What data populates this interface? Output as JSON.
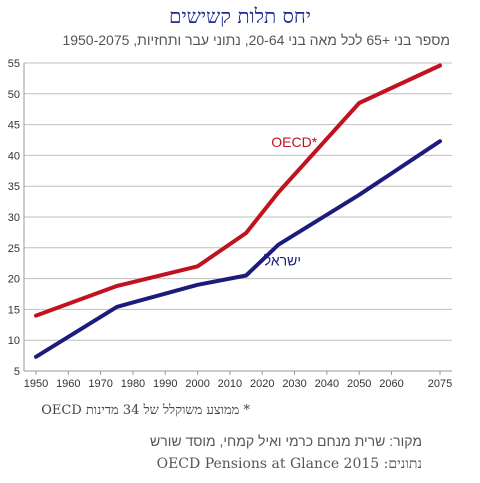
{
  "header": {
    "title": "יחס תלות קשישים",
    "subtitle": "מספר בני +65 לכל מאה בני 20-64, נתוני עבר ותחזיות, 1950-2075"
  },
  "footer": {
    "footnote": "* ממוצע משוקלל של 34 מדינות OECD",
    "source": "מקור: שרית מנחם כרמי ואיל קמחי, מוסד שורש",
    "data_source": "נתונים: OECD Pensions at Glance 2015"
  },
  "colors": {
    "oecd": "#c0131f",
    "israel": "#1c1c7c",
    "axis": "#999999",
    "grid": "#bfbfbf"
  },
  "chart_data": {
    "type": "line",
    "x_ticks": [
      1950,
      1960,
      1970,
      1980,
      1990,
      2000,
      2010,
      2020,
      2030,
      2040,
      2050,
      2060,
      2075
    ],
    "y_ticks": [
      5,
      10,
      15,
      20,
      25,
      30,
      35,
      40,
      45,
      50,
      55
    ],
    "ylim": [
      5,
      55
    ],
    "grid": "horizontal",
    "series": [
      {
        "name": "OECD*",
        "color": "#c0131f",
        "points": [
          [
            1950,
            14.0
          ],
          [
            1975,
            18.8
          ],
          [
            2000,
            22.0
          ],
          [
            2015,
            27.4
          ],
          [
            2025,
            34.0
          ],
          [
            2050,
            48.5
          ],
          [
            2075,
            54.6
          ]
        ]
      },
      {
        "name": "ישראל",
        "color": "#1c1c7c",
        "points": [
          [
            1950,
            7.3
          ],
          [
            1975,
            15.4
          ],
          [
            2000,
            19.0
          ],
          [
            2015,
            20.5
          ],
          [
            2025,
            25.5
          ],
          [
            2050,
            33.6
          ],
          [
            2075,
            42.3
          ]
        ]
      }
    ]
  }
}
